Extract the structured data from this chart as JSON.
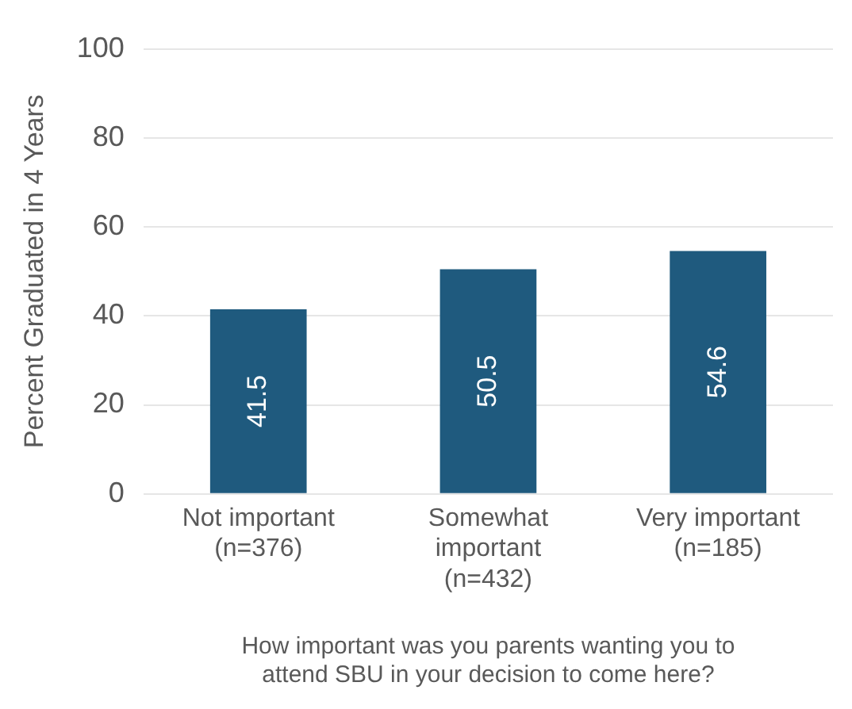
{
  "chart_data": {
    "type": "bar",
    "categories": [
      "Not important\n(n=376)",
      "Somewhat\nimportant\n(n=432)",
      "Very important\n(n=185)"
    ],
    "values": [
      41.5,
      50.5,
      54.6
    ],
    "color": "#1f5a7e",
    "ylabel": "Percent Graduated in 4 Years",
    "xlabel": "How important was you parents wanting you to\nattend SBU in your decision to come here?",
    "ylim": [
      0,
      100
    ],
    "yticks": [
      0,
      20,
      40,
      60,
      80,
      100
    ],
    "grid": "y",
    "data_labels": true
  }
}
